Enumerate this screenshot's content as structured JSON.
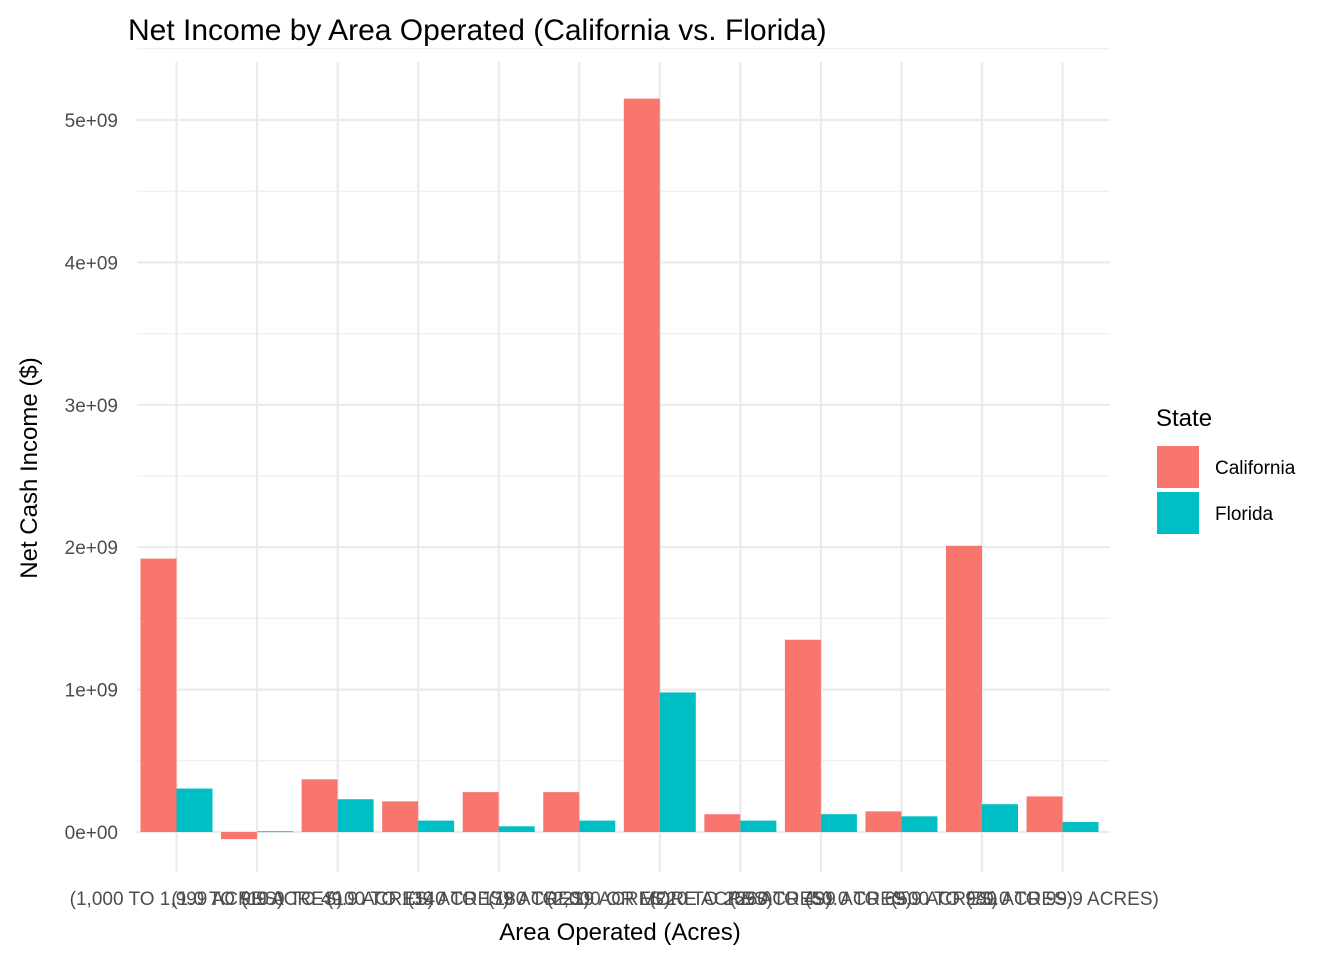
{
  "chart_data": {
    "type": "bar",
    "title": "Net Income by Area Operated (California vs. Florida)",
    "xlabel": "Area Operated (Acres)",
    "ylabel": "Net Cash Income ($)",
    "ylim": [
      -120000000,
      5450000000
    ],
    "yticks": [
      0,
      1000000000,
      2000000000,
      3000000000,
      4000000000,
      5000000000
    ],
    "ytick_labels": [
      "0e+00",
      "1e+09",
      "2e+09",
      "3e+09",
      "4e+09",
      "5e+09"
    ],
    "grid": true,
    "legend_position": "right",
    "legend_title": "State",
    "categories": [
      "(1,000 TO 1,999 ACRES)",
      "(1.0 TO 9.9 ACRES)",
      "(10.0 TO 49.9 ACRES)",
      "(100 TO 139 ACRES)",
      "(140 TO 179 ACRES)",
      "(180 TO 219 ACRES)",
      "(2,000 OR MORE ACRES)",
      "(220 TO 259 ACRES)",
      "(260 TO 499 ACRES)",
      "(50.0 TO 69.9 ACRES)",
      "(500 TO 999 ACRES)",
      "(70.0 TO 99.9 ACRES)"
    ],
    "series": [
      {
        "name": "California",
        "color": "#F8766D",
        "values": [
          1920000000,
          -50000000,
          370000000,
          215000000,
          280000000,
          280000000,
          5150000000,
          125000000,
          1350000000,
          145000000,
          2010000000,
          250000000
        ]
      },
      {
        "name": "Florida",
        "color": "#00BFC4",
        "values": [
          305000000,
          5000000,
          230000000,
          80000000,
          40000000,
          80000000,
          980000000,
          80000000,
          125000000,
          110000000,
          195000000,
          70000000
        ]
      }
    ]
  }
}
